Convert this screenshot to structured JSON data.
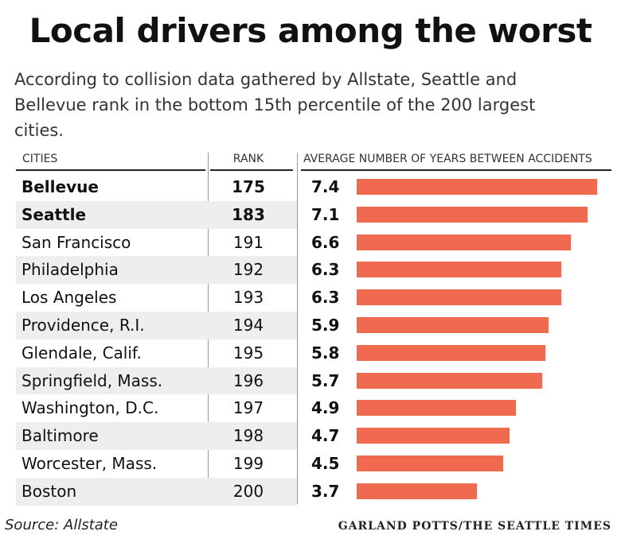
{
  "title": "Local drivers among the worst",
  "subtitle": "According to collision data gathered by Allstate, Seattle and Bellevue rank in the bottom 15th percentile of the 200 largest cities.",
  "headers": {
    "cities": "CITIES",
    "rank": "RANK",
    "years": "AVERAGE NUMBER OF YEARS BETWEEN ACCIDENTS"
  },
  "source": "Source: Allstate",
  "credit": "GARLAND POTTS/THE SEATTLE TIMES",
  "colors": {
    "bar": "#f06a4f",
    "shade": "#eeeeee"
  },
  "chart_data": {
    "type": "bar",
    "title": "Local drivers among the worst",
    "categories": [
      "Bellevue",
      "Seattle",
      "San Francisco",
      "Philadelphia",
      "Los Angeles",
      "Providence, R.I.",
      "Glendale, Calif.",
      "Springfield, Mass.",
      "Washington, D.C.",
      "Baltimore",
      "Worcester, Mass.",
      "Boston"
    ],
    "ranks": [
      "175",
      "183",
      "191",
      "192",
      "193",
      "194",
      "195",
      "196",
      "197",
      "198",
      "199",
      "200"
    ],
    "values": [
      7.4,
      7.1,
      6.6,
      6.3,
      6.3,
      5.9,
      5.8,
      5.7,
      4.9,
      4.7,
      4.5,
      3.7
    ],
    "value_labels": [
      "7.4",
      "7.1",
      "6.6",
      "6.3",
      "6.3",
      "5.9",
      "5.8",
      "5.7",
      "4.9",
      "4.7",
      "4.5",
      "3.7"
    ],
    "highlighted": [
      "Bellevue",
      "Seattle"
    ],
    "xlabel": "AVERAGE NUMBER OF YEARS BETWEEN ACCIDENTS"
  }
}
